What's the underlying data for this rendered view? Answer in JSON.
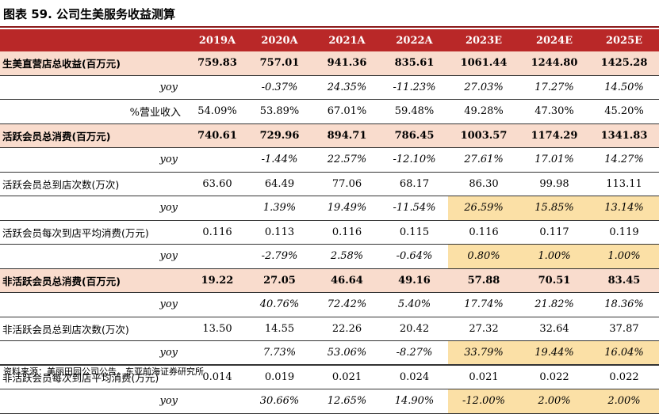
{
  "title": "图表 59. 公司生美服务收益测算",
  "source": "资料来源：美丽田园公司公告，东亚前海证券研究所",
  "header": [
    "",
    "2019A",
    "2020A",
    "2021A",
    "2022A",
    "2023E",
    "2024E",
    "2025E"
  ],
  "colors": {
    "header_bg": "#b92828",
    "main_row_bg": "#f9dccd",
    "highlight_bg": "#fbe0a6"
  },
  "rows": [
    {
      "type": "main",
      "label": "生美直营店总收益(百万元)",
      "values": [
        "759.83",
        "757.01",
        "941.36",
        "835.61",
        "1061.44",
        "1244.80",
        "1425.28"
      ]
    },
    {
      "type": "yoy",
      "label": "yoy",
      "values": [
        "",
        "-0.37%",
        "24.35%",
        "-11.23%",
        "27.03%",
        "17.27%",
        "14.50%"
      ]
    },
    {
      "type": "sub-pct",
      "label": "%营业收入",
      "values": [
        "54.09%",
        "53.89%",
        "67.01%",
        "59.48%",
        "49.28%",
        "47.30%",
        "45.20%"
      ]
    },
    {
      "type": "main",
      "label": "活跃会员总消费(百万元)",
      "values": [
        "740.61",
        "729.96",
        "894.71",
        "786.45",
        "1003.57",
        "1174.29",
        "1341.83"
      ]
    },
    {
      "type": "yoy",
      "label": "yoy",
      "values": [
        "",
        "-1.44%",
        "22.57%",
        "-12.10%",
        "27.61%",
        "17.01%",
        "14.27%"
      ]
    },
    {
      "type": "sub",
      "label": "活跃会员总到店次数(万次)",
      "values": [
        "63.60",
        "64.49",
        "77.06",
        "68.17",
        "86.30",
        "99.98",
        "113.11"
      ]
    },
    {
      "type": "yoy",
      "label": "yoy",
      "values": [
        "",
        "1.39%",
        "19.49%",
        "-11.54%",
        "26.59%",
        "15.85%",
        "13.14%"
      ],
      "highlight": [
        4,
        5,
        6
      ]
    },
    {
      "type": "sub",
      "label": "活跃会员每次到店平均消费(万元)",
      "values": [
        "0.116",
        "0.113",
        "0.116",
        "0.115",
        "0.116",
        "0.117",
        "0.119"
      ]
    },
    {
      "type": "yoy",
      "label": "yoy",
      "values": [
        "",
        "-2.79%",
        "2.58%",
        "-0.64%",
        "0.80%",
        "1.00%",
        "1.00%"
      ],
      "highlight": [
        4,
        5,
        6
      ]
    },
    {
      "type": "main",
      "label": "非活跃会员总消费(百万元)",
      "values": [
        "19.22",
        "27.05",
        "46.64",
        "49.16",
        "57.88",
        "70.51",
        "83.45"
      ]
    },
    {
      "type": "yoy",
      "label": "yoy",
      "values": [
        "",
        "40.76%",
        "72.42%",
        "5.40%",
        "17.74%",
        "21.82%",
        "18.36%"
      ]
    },
    {
      "type": "sub",
      "label": "非活跃会员总到店次数(万次)",
      "values": [
        "13.50",
        "14.55",
        "22.26",
        "20.42",
        "27.32",
        "32.64",
        "37.87"
      ]
    },
    {
      "type": "yoy",
      "label": "yoy",
      "values": [
        "",
        "7.73%",
        "53.06%",
        "-8.27%",
        "33.79%",
        "19.44%",
        "16.04%"
      ],
      "highlight": [
        4,
        5,
        6
      ]
    },
    {
      "type": "sub",
      "label": "非活跃会员每次到店平均消费(万元)",
      "values": [
        "0.014",
        "0.019",
        "0.021",
        "0.024",
        "0.021",
        "0.022",
        "0.022"
      ]
    },
    {
      "type": "yoy",
      "label": "yoy",
      "values": [
        "",
        "30.66%",
        "12.65%",
        "14.90%",
        "-12.00%",
        "2.00%",
        "2.00%"
      ],
      "highlight": [
        4,
        5,
        6
      ]
    }
  ]
}
